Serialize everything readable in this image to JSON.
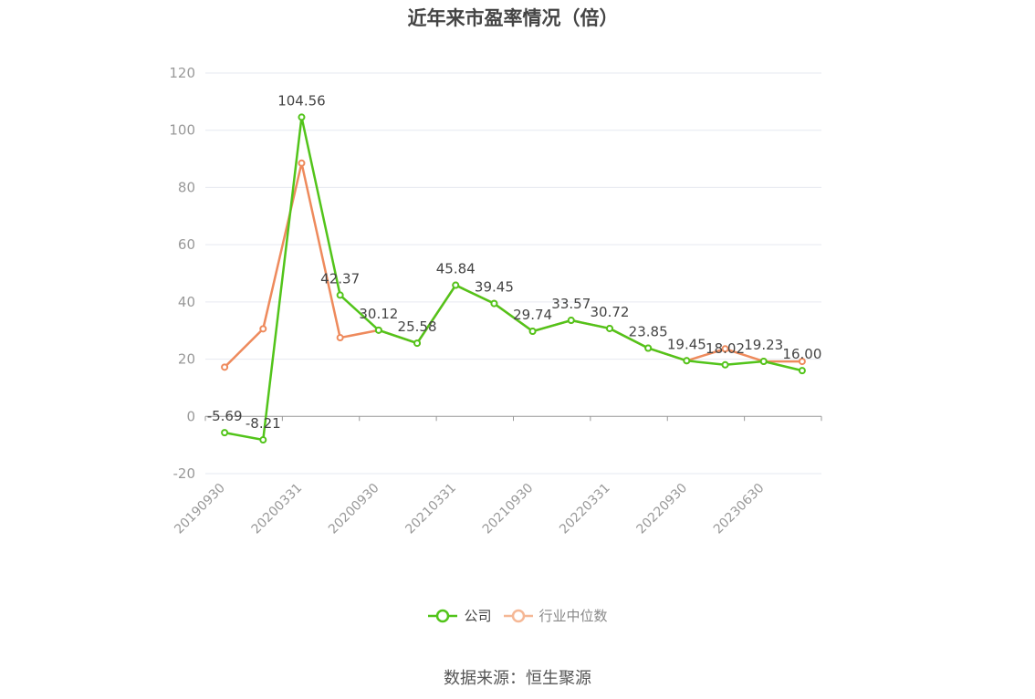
{
  "source_text": "数据来源：恒生聚源",
  "colors": {
    "company": "#52c41a",
    "industry": "#ee8a5c",
    "industry_legend": "#f5b896",
    "grid": "#e6e9f0",
    "axis": "#999999"
  },
  "chart_data": {
    "type": "line",
    "title": "近年来市盈率情况（倍）",
    "xlabel": "",
    "ylabel": "",
    "ylim": [
      -20,
      120
    ],
    "yticks": [
      -20,
      0,
      20,
      40,
      60,
      80,
      100,
      120
    ],
    "categories": [
      "20190930",
      "20191231",
      "20200331",
      "20200630",
      "20200930",
      "20201231",
      "20210331",
      "20210630",
      "20210930",
      "20211231",
      "20220331",
      "20220630",
      "20220930",
      "20221231",
      "20230331",
      "20230630"
    ],
    "xtick_labels": [
      "20190930",
      "20200331",
      "20200930",
      "20210331",
      "20210930",
      "20220331",
      "20220930",
      "20230630"
    ],
    "legend_position": "bottom",
    "grid": true,
    "series": [
      {
        "name": "公司",
        "values": [
          -5.69,
          -8.21,
          104.56,
          42.37,
          30.12,
          25.58,
          45.84,
          39.45,
          29.74,
          33.57,
          30.72,
          23.85,
          19.45,
          18.02,
          19.23,
          16.0
        ]
      },
      {
        "name": "行业中位数",
        "values": [
          17.2,
          30.6,
          88.5,
          27.5,
          30.12,
          25.58,
          45.84,
          39.45,
          29.74,
          33.57,
          30.72,
          23.85,
          19.45,
          23.6,
          19.23,
          19.2
        ]
      }
    ],
    "data_labels": [
      "-5.69",
      "-8.21",
      "104.56",
      "42.37",
      "30.12",
      "25.58",
      "45.84",
      "39.45",
      "29.74",
      "33.57",
      "30.72",
      "23.85",
      "19.45",
      "18.02",
      "19.23",
      "16.00"
    ]
  }
}
